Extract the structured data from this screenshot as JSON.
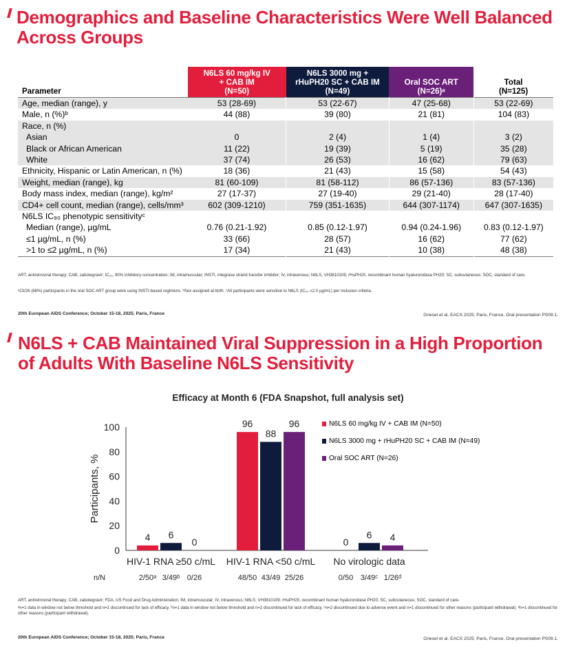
{
  "slide1": {
    "title_line1": "Demographics and Baseline Characteristics Were Well Balanced",
    "title_line2": "Across Groups",
    "table": {
      "header": {
        "parameter": "Parameter",
        "g1_l1": "N6LS 60 mg/kg IV",
        "g1_l2": "+ CAB IM",
        "g1_l3": "(N=50)",
        "g2_l1": "N6LS 3000 mg +",
        "g2_l2": "rHuPH20 SC + CAB IM",
        "g2_l3": "(N=49)",
        "g3_l1": "Oral SOC ART",
        "g3_l2": "(N=26)ᵃ",
        "tot_l1": "Total",
        "tot_l2": "(N=125)"
      },
      "rows": [
        {
          "param": "Age, median (range), y",
          "g1": "53 (28-69)",
          "g2": "53 (22-67)",
          "g3": "47 (25-68)",
          "tot": "53 (22-69)"
        },
        {
          "param": "Male, n (%)ᵇ",
          "g1": "44 (88)",
          "g2": "39 (80)",
          "g3": "21 (81)",
          "tot": "104 (83)"
        },
        {
          "param": "Race, n (%)",
          "g1": "",
          "g2": "",
          "g3": "",
          "tot": ""
        },
        {
          "param": "Asian",
          "g1": "0",
          "g2": "2 (4)",
          "g3": "1 (4)",
          "tot": "3 (2)"
        },
        {
          "param": "Black or African American",
          "g1": "11 (22)",
          "g2": "19 (39)",
          "g3": "5 (19)",
          "tot": "35 (28)"
        },
        {
          "param": "White",
          "g1": "37 (74)",
          "g2": "26 (53)",
          "g3": "16 (62)",
          "tot": "79 (63)"
        },
        {
          "param": "Ethnicity, Hispanic or Latin American, n (%)",
          "g1": "18 (36)",
          "g2": "21 (43)",
          "g3": "15 (58)",
          "tot": "54 (43)"
        },
        {
          "param": "Weight, median (range), kg",
          "g1": "81 (60-109)",
          "g2": "81 (58-112)",
          "g3": "86 (57-136)",
          "tot": "83 (57-136)"
        },
        {
          "param": "Body mass index, median (range), kg/m²",
          "g1": "27 (17-37)",
          "g2": "27 (19-40)",
          "g3": "29 (21-40)",
          "tot": "28 (17-40)"
        },
        {
          "param": "CD4+ cell count, median (range), cells/mm³",
          "g1": "602 (309-1210)",
          "g2": "759 (351-1635)",
          "g3": "644 (307-1174)",
          "tot": "647 (307-1635)"
        },
        {
          "param": "N6LS IC₉₀ phenotypic sensitivityᶜ",
          "g1": "",
          "g2": "",
          "g3": "",
          "tot": ""
        },
        {
          "param": "Median (range), µg/mL",
          "g1": "0.76 (0.21-1.92)",
          "g2": "0.85 (0.12-1.97)",
          "g3": "0.94 (0.24-1.96)",
          "tot": "0.83 (0.12-1.97)"
        },
        {
          "param": "≤1 µg/mL, n (%)",
          "g1": "33 (66)",
          "g2": "28 (57)",
          "g3": "16 (62)",
          "tot": "77 (62)"
        },
        {
          "param": ">1 to ≤2 µg/mL, n (%)",
          "g1": "17 (34)",
          "g2": "21 (43)",
          "g3": "10 (38)",
          "tot": "48 (38)"
        }
      ]
    },
    "footnote1": "ART, antiretroviral therapy; CAB, cabotegravir; IC₉₀, 90% inhibitory concentration; IM, intramuscular; INSTI, integrase strand transfer inhibitor; IV, intravenous; N6LS, VH3810109; rHuPH20, recombinant human hyaluronidase PH20; SC, subcutaneous; SOC, standard of care.",
    "footnote2": "ᵃ23/26 (88%) participants in the oral SOC ART group were using INSTI-based regimens. ᵇSex assigned at birth. ᶜAll participants were sensitive to N6LS (IC₉₀ ≤2.0 µg/mL) per inclusion criteria.",
    "conference": "20th European AIDS Conference; October 15-18, 2025; Paris, France",
    "citation": "Griesel et al. EACS 2025; Paris, France. Oral presentation PS09.1."
  },
  "slide2": {
    "title_line1": "N6LS + CAB Maintained Viral Suppression in a High Proportion",
    "title_line2": "of Adults With Baseline N6LS Sensitivity",
    "nn_label": "n/N",
    "footnote1": "ART, antiretroviral therapy; CAB, cabotegravir; FDA, US Food and Drug Administration; IM, intramuscular; IV, intravenous; N6LS, VH3810109; rHuPH20, recombinant human hyaluronidase PH20; SC, subcutaneous; SOC, standard of care.",
    "footnote2": "ᵃn=1 data in window not below threshold and n=1 discontinued for lack of efficacy. ᵇn=1 data in window not below threshold and n=2 discontinued for lack of efficacy. ᶜn=2 discontinued due to adverse event and n=1 discontinued for other reasons (participant withdrawal). ᵈn=1 discontinued for other reasons (participant withdrawal).",
    "conference": "20th European AIDS Conference; October 15-18, 2025; Paris, France",
    "citation": "Griesel et al. EACS 2025; Paris, France. Oral presentation PS09.1."
  },
  "chart_data": {
    "type": "bar",
    "title": "Efficacy at Month 6 (FDA Snapshot, full analysis set)",
    "xlabel": "",
    "ylabel": "Participants, %",
    "ylim": [
      0,
      100
    ],
    "yticks": [
      0,
      20,
      40,
      60,
      80,
      100
    ],
    "categories": [
      "HIV-1 RNA ≥50 c/mL",
      "HIV-1 RNA <50 c/mL",
      "No virologic data"
    ],
    "series": [
      {
        "name": "N6LS 60 mg/kg IV + CAB IM (N=50)",
        "color": "#e21e3c",
        "values": [
          4,
          96,
          0
        ],
        "nn": [
          "2/50ᵃ",
          "48/50",
          "0/50"
        ]
      },
      {
        "name": "N6LS 3000 mg + rHuPH20 SC + CAB IM (N=49)",
        "color": "#0e1b3d",
        "values": [
          6,
          88,
          6
        ],
        "nn": [
          "3/49ᵇ",
          "43/49",
          "3/49ᶜ"
        ]
      },
      {
        "name": "Oral SOC ART (N=26)",
        "color": "#6a1f78",
        "values": [
          0,
          96,
          4
        ],
        "nn": [
          "0/26",
          "25/26",
          "1/26ᵈ"
        ]
      }
    ],
    "legend": "right"
  }
}
